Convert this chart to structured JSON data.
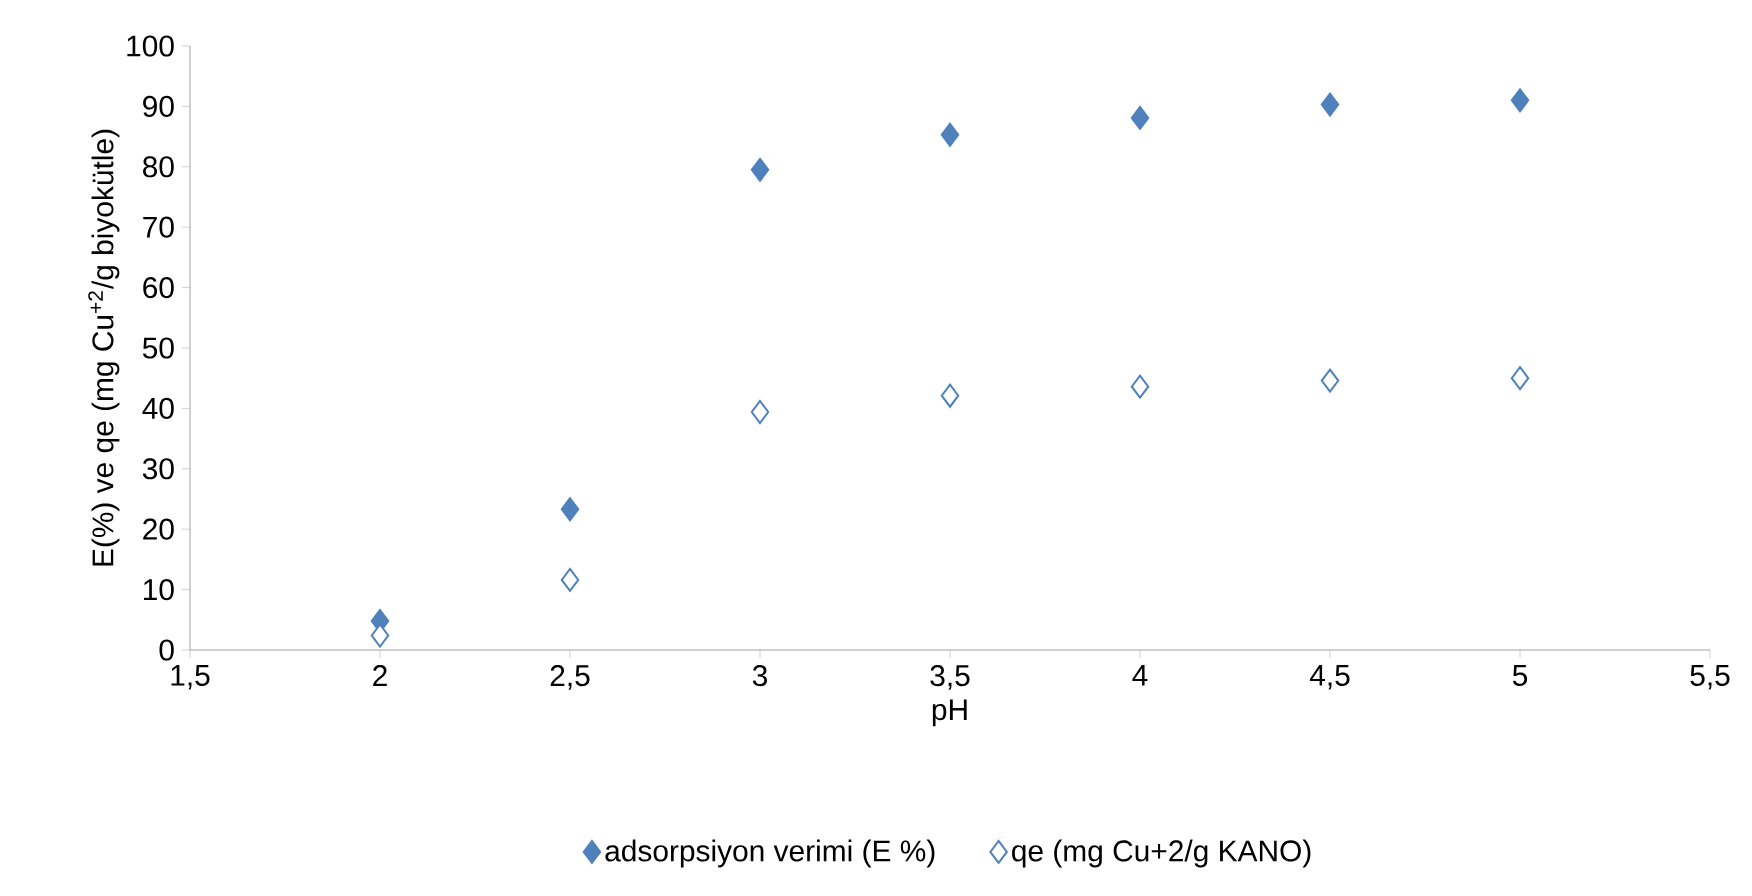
{
  "chart_data": {
    "type": "scatter",
    "xlabel": "pH",
    "ylabel": "E(%) ve qe (mg Cu$^{+2}$/g biyokütle)",
    "x": [
      2,
      2.5,
      3,
      3.5,
      4,
      4.5,
      5
    ],
    "series": [
      {
        "name": "adsorpsiyon verimi (E %)",
        "color": "#4f81bd",
        "values": [
          4.8,
          23.3,
          79.5,
          85.3,
          88.1,
          90.3,
          91.0
        ]
      },
      {
        "name": "qe (mg Cu+2/g KANO)",
        "color": "#4f81bd",
        "values": [
          2.4,
          11.6,
          39.4,
          42.1,
          43.6,
          44.6,
          45.0
        ]
      }
    ],
    "xlim": [
      1.5,
      5.5
    ],
    "xticks": [
      {
        "value": 1.5,
        "label": "1,5"
      },
      2,
      {
        "value": 2.5,
        "label": "2,5"
      },
      3,
      {
        "value": 3.5,
        "label": "3,5"
      },
      4,
      {
        "value": 4.5,
        "label": "4,5"
      },
      5,
      {
        "value": 5.5,
        "label": "5,5"
      }
    ],
    "ylim": [
      0,
      100
    ],
    "yticks": [
      0,
      10,
      20,
      30,
      40,
      50,
      60,
      70,
      80,
      90,
      100
    ],
    "marker": "diamond",
    "legend": "bottom",
    "grid": false
  }
}
